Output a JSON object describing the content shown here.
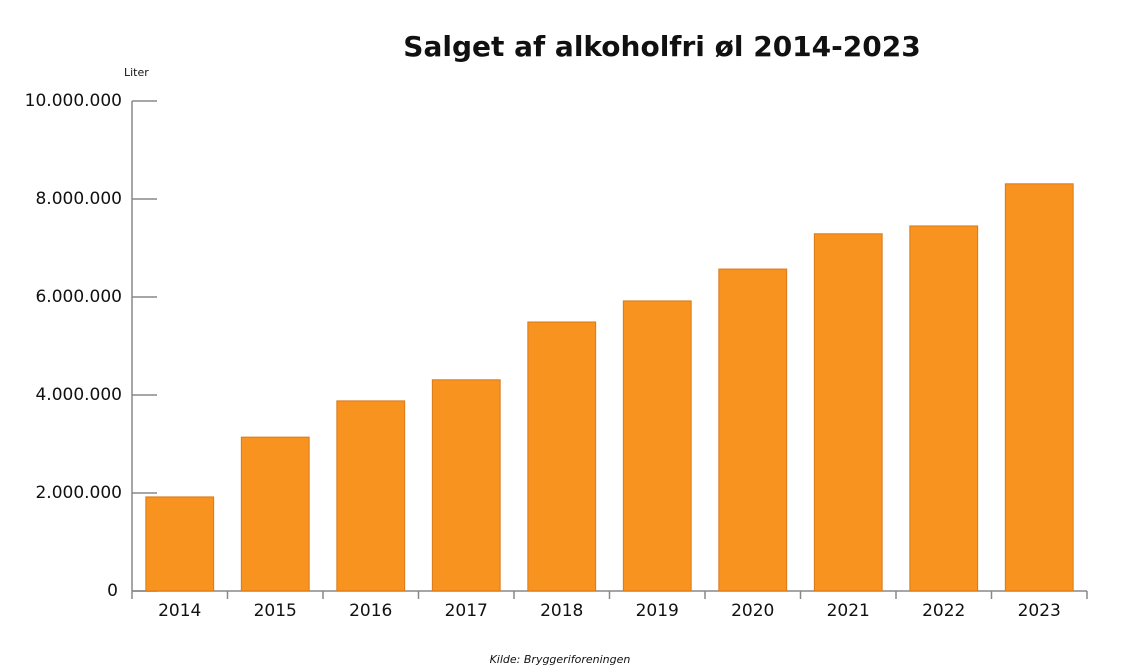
{
  "chart_data": {
    "type": "bar",
    "title": "Salget af alkoholfri øl 2014-2023",
    "y_axis_label": "Liter",
    "source": "Kilde: Bryggeriforeningen",
    "categories": [
      "2014",
      "2015",
      "2016",
      "2017",
      "2018",
      "2019",
      "2020",
      "2021",
      "2022",
      "2023"
    ],
    "values": [
      1920000,
      3140000,
      3880000,
      4310000,
      5490000,
      5920000,
      6570000,
      7290000,
      7450000,
      8310000
    ],
    "color": "#f7931e",
    "ylim": [
      0,
      10000000
    ],
    "yticks": [
      0,
      {
        "value": 2000000,
        "label": "2.000.000"
      },
      {
        "value": 4000000,
        "label": "4.000.000"
      },
      {
        "value": 6000000,
        "label": "6.000.000"
      },
      {
        "value": 8000000,
        "label": "8.000.000"
      },
      {
        "value": 10000000,
        "label": "10.000.000"
      }
    ],
    "grid": false
  }
}
